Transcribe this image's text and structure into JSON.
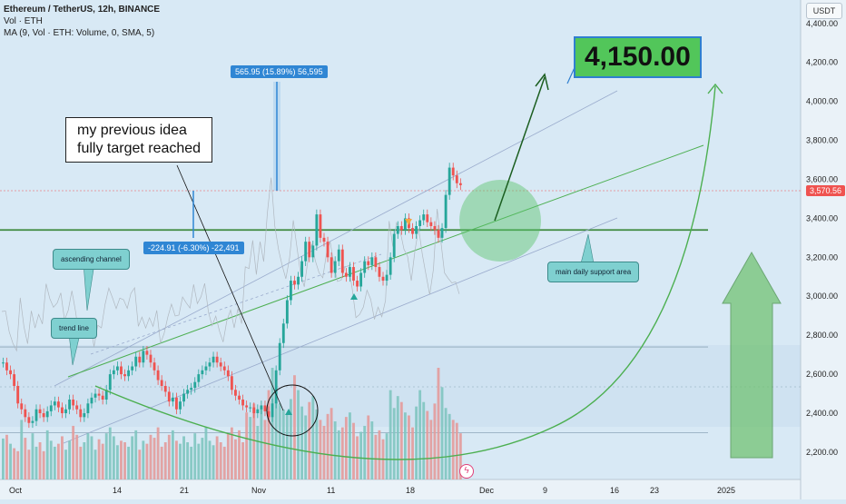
{
  "legend": {
    "symbol": "Ethereum / TetherUS, 12h, BINANCE",
    "vol": "Vol · ETH",
    "ma": "MA (9, Vol · ETH: Volume, 0, SMA, 5)"
  },
  "currency": "USDT",
  "annotations": {
    "idea_note": [
      "my previous idea",
      "fully target reached"
    ],
    "target": "4,150.00",
    "measure_up": "565.95 (15.89%) 56,595",
    "measure_down": "-224.91 (-6.30%) -22,491",
    "ascending_channel": "ascending channel",
    "trend_line": "trend line",
    "support": "main daily support area"
  },
  "current_price": "3,570.56",
  "colors": {
    "up": "#26a69a",
    "down": "#ef5350",
    "line": "#4caf50",
    "blue": "#2f86d4"
  },
  "chart_data": {
    "type": "candlestick",
    "timeframe": "12h",
    "y_ticks": [
      "2,200.00",
      "2,400.00",
      "2,600.00",
      "2,800.00",
      "3,000.00",
      "3,200.00",
      "3,400.00",
      "3,600.00",
      "3,800.00",
      "4,000.00",
      "4,200.00",
      "4,400.00"
    ],
    "y_range": [
      2060,
      4520
    ],
    "x_ticks": [
      "Oct",
      "14",
      "21",
      "Nov",
      "11",
      "18",
      "Dec",
      "9",
      "16",
      "23",
      "2025"
    ],
    "ohlc_close": [
      2660,
      2620,
      2600,
      2540,
      2450,
      2420,
      2380,
      2350,
      2360,
      2420,
      2400,
      2380,
      2410,
      2440,
      2460,
      2430,
      2400,
      2420,
      2470,
      2440,
      2420,
      2380,
      2400,
      2450,
      2480,
      2500,
      2490,
      2470,
      2520,
      2600,
      2620,
      2640,
      2600,
      2590,
      2620,
      2640,
      2690,
      2660,
      2720,
      2700,
      2660,
      2620,
      2570,
      2540,
      2510,
      2460,
      2480,
      2420,
      2460,
      2500,
      2520,
      2530,
      2560,
      2600,
      2620,
      2640,
      2660,
      2690,
      2660,
      2640,
      2620,
      2590,
      2520,
      2490,
      2470,
      2440,
      2430,
      2430,
      2400,
      2420,
      2440,
      2410,
      2380,
      2450,
      2620,
      2760,
      2860,
      2980,
      3080,
      3060,
      3100,
      3180,
      3280,
      3200,
      3260,
      3420,
      3300,
      3280,
      3200,
      3120,
      3180,
      3240,
      3120,
      3100,
      3150,
      3080,
      3050,
      3120,
      3180,
      3160,
      3200,
      3150,
      3100,
      3080,
      3110,
      3200,
      3320,
      3360,
      3340,
      3400,
      3350,
      3320,
      3360,
      3390,
      3420,
      3380,
      3360,
      3340,
      3300,
      3350,
      3520,
      3660,
      3620,
      3580,
      3570
    ],
    "volume": [
      55,
      60,
      48,
      42,
      38,
      80,
      56,
      40,
      62,
      44,
      50,
      38,
      66,
      52,
      44,
      48,
      58,
      40,
      52,
      72,
      60,
      44,
      50,
      62,
      58,
      40,
      54,
      48,
      62,
      70,
      58,
      46,
      52,
      50,
      44,
      58,
      66,
      40,
      52,
      48,
      60,
      56,
      70,
      44,
      50,
      60,
      66,
      52,
      48,
      58,
      50,
      44,
      62,
      48,
      56,
      70,
      52,
      46,
      58,
      50,
      44,
      62,
      70,
      54,
      66,
      50,
      90,
      84,
      102,
      72,
      96,
      80,
      120,
      150,
      116,
      102,
      94,
      88,
      108,
      140,
      120,
      98,
      86,
      104,
      112,
      94,
      80,
      72,
      88,
      96,
      78,
      66,
      70,
      84,
      90,
      76,
      58,
      64,
      72,
      86,
      78,
      60,
      66,
      54,
      62,
      120,
      96,
      112,
      104,
      90,
      86,
      70,
      98,
      120,
      104,
      92,
      80,
      102,
      150,
      124,
      96,
      88,
      80,
      76,
      62
    ],
    "volume_up_flags": [
      1,
      0,
      1,
      0,
      0,
      1,
      0,
      0,
      1,
      1,
      0,
      0,
      1,
      1,
      1,
      0,
      0,
      1,
      1,
      0,
      0,
      0,
      1,
      1,
      1,
      1,
      0,
      0,
      1,
      1,
      1,
      1,
      0,
      0,
      1,
      1,
      1,
      0,
      1,
      0,
      0,
      0,
      0,
      0,
      0,
      0,
      1,
      0,
      1,
      1,
      1,
      1,
      1,
      1,
      1,
      1,
      1,
      1,
      0,
      0,
      0,
      0,
      0,
      0,
      0,
      0,
      0,
      1,
      0,
      1,
      1,
      0,
      0,
      1,
      1,
      1,
      1,
      1,
      1,
      0,
      1,
      1,
      1,
      0,
      1,
      1,
      0,
      0,
      0,
      0,
      1,
      1,
      0,
      0,
      1,
      0,
      0,
      1,
      1,
      0,
      1,
      0,
      0,
      0,
      1,
      1,
      1,
      1,
      0,
      1,
      0,
      0,
      1,
      1,
      1,
      0,
      0,
      0,
      0,
      1,
      1,
      1,
      0,
      0,
      0
    ],
    "horizontal_levels": [
      3340,
      2740,
      2300
    ]
  }
}
